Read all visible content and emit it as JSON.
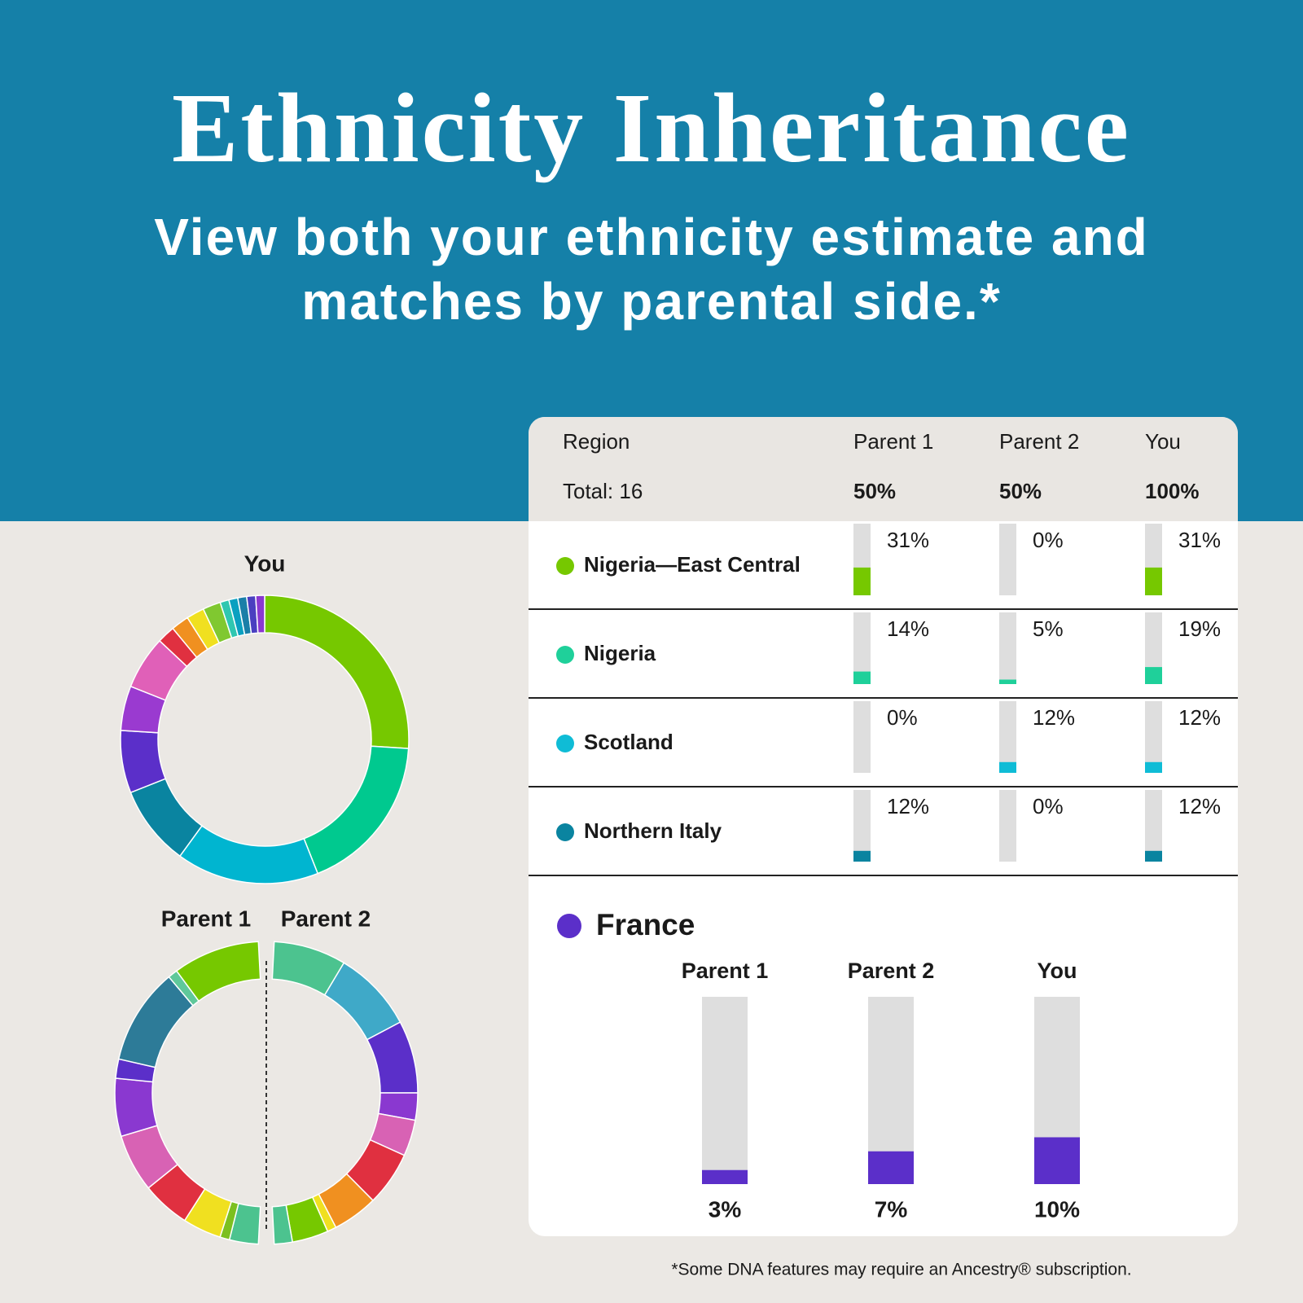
{
  "header": {
    "title": "Ethnicity Inheritance",
    "subtitle_lines": [
      "View both your ethnicity estimate and",
      "matches by parental side.*"
    ]
  },
  "donuts": {
    "you": {
      "label": "You",
      "segments": [
        {
          "color": "#76c800",
          "value": 26
        },
        {
          "color": "#00c98f",
          "value": 18
        },
        {
          "color": "#00b5d0",
          "value": 16
        },
        {
          "color": "#0a84a0",
          "value": 9
        },
        {
          "color": "#5b2fc9",
          "value": 7
        },
        {
          "color": "#9a3ad0",
          "value": 5
        },
        {
          "color": "#e060b8",
          "value": 6
        },
        {
          "color": "#e03040",
          "value": 2
        },
        {
          "color": "#f09020",
          "value": 2
        },
        {
          "color": "#f0e020",
          "value": 2
        },
        {
          "color": "#80c830",
          "value": 2
        },
        {
          "color": "#2fc7b0",
          "value": 1
        },
        {
          "color": "#0aa0c0",
          "value": 1
        },
        {
          "color": "#1a7fa8",
          "value": 1
        },
        {
          "color": "#4a3fc0",
          "value": 1
        },
        {
          "color": "#8a38d0",
          "value": 1
        }
      ]
    },
    "parents": [
      {
        "label": "Parent 1",
        "segments": [
          {
            "color": "#4cc38f",
            "value": 3
          },
          {
            "color": "#7cc020",
            "value": 1
          },
          {
            "color": "#f0e020",
            "value": 4
          },
          {
            "color": "#e03040",
            "value": 5
          },
          {
            "color": "#d862b4",
            "value": 6
          },
          {
            "color": "#8a38d0",
            "value": 6
          },
          {
            "color": "#5b2fc9",
            "value": 2
          },
          {
            "color": "#2d7b98",
            "value": 10
          },
          {
            "color": "#5fc89a",
            "value": 1
          },
          {
            "color": "#76c800",
            "value": 9
          }
        ]
      },
      {
        "label": "Parent 2",
        "segments": [
          {
            "color": "#4cc38f",
            "value": 8
          },
          {
            "color": "#3fa9c8",
            "value": 9
          },
          {
            "color": "#5b2fc9",
            "value": 8
          },
          {
            "color": "#8a38d0",
            "value": 3
          },
          {
            "color": "#d862b4",
            "value": 4
          },
          {
            "color": "#e03040",
            "value": 6
          },
          {
            "color": "#f09020",
            "value": 5
          },
          {
            "color": "#f0e020",
            "value": 1
          },
          {
            "color": "#76c800",
            "value": 4
          },
          {
            "color": "#4cc38f",
            "value": 2
          }
        ]
      }
    ]
  },
  "table": {
    "columns": [
      "Region",
      "Parent 1",
      "Parent 2",
      "You"
    ],
    "totals": [
      "Total: 16",
      "50%",
      "50%",
      "100%"
    ],
    "ylim": [
      0,
      80
    ],
    "rows": [
      {
        "region": "Nigeria—East Central",
        "color": "#76c800",
        "values": [
          31,
          0,
          31
        ],
        "value_labels": [
          "31%",
          "0%",
          "31%"
        ]
      },
      {
        "region": "Nigeria",
        "color": "#1fd09a",
        "values": [
          14,
          5,
          19
        ],
        "value_labels": [
          "14%",
          "5%",
          "19%"
        ]
      },
      {
        "region": "Scotland",
        "color": "#0fbcd6",
        "values": [
          0,
          12,
          12
        ],
        "value_labels": [
          "0%",
          "12%",
          "12%"
        ]
      },
      {
        "region": "Northern Italy",
        "color": "#0a84a0",
        "values": [
          12,
          0,
          12
        ],
        "value_labels": [
          "12%",
          "0%",
          "12%"
        ]
      }
    ]
  },
  "featured": {
    "region": "France",
    "color": "#5b2fc9",
    "columns": [
      "Parent 1",
      "Parent 2",
      "You"
    ],
    "values": [
      3,
      7,
      10
    ],
    "value_labels": [
      "3%",
      "7%",
      "10%"
    ],
    "ylim": [
      0,
      40
    ]
  },
  "footnote": "*Some DNA features may require an Ancestry® subscription."
}
